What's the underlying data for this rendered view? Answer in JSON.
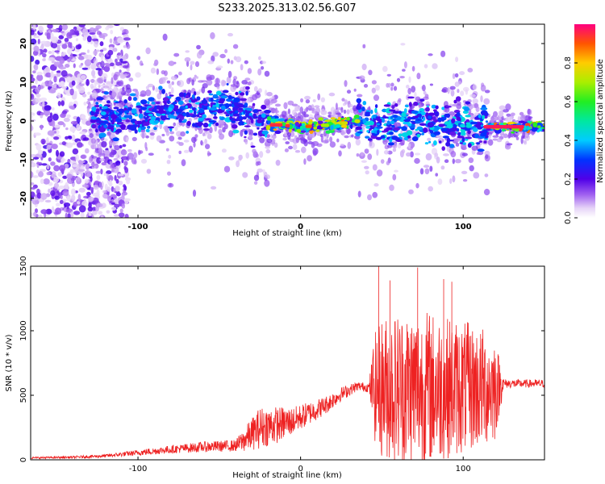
{
  "chart_data": [
    {
      "type": "heatmap",
      "title": "S233.2025.313.02.56.G07",
      "xlabel": "Height of straight line (km)",
      "ylabel": "Frequency (Hz)",
      "xlim": [
        -166,
        150
      ],
      "ylim": [
        -25,
        25
      ],
      "xticks": [
        -100,
        0,
        100
      ],
      "yticks": [
        -20,
        -10,
        0,
        10,
        20
      ],
      "colorbar": {
        "label": "Normalized spectral amplitude",
        "range": [
          0,
          1
        ],
        "ticks": [
          "0.0",
          "0.2",
          "0.4",
          "0.6",
          "0.8"
        ]
      },
      "ridge": {
        "description_x": [
          -125,
          -110,
          -90,
          -75,
          -60,
          -45,
          -35,
          -25,
          -15,
          0,
          20,
          35,
          50,
          70,
          90,
          110,
          150
        ],
        "center_freq": [
          0.5,
          1,
          2,
          3.5,
          3,
          4,
          2,
          0,
          -1,
          -1.5,
          -1,
          0,
          -1,
          0,
          -1,
          -1.5,
          -1.5
        ]
      }
    },
    {
      "type": "line",
      "xlabel": "Height of straight line (km)",
      "ylabel": "SNR (10 * v/v)",
      "xlim": [
        -166,
        150
      ],
      "ylim": [
        0,
        1500
      ],
      "xticks": [
        -100,
        0,
        100
      ],
      "yticks": [
        0,
        500,
        1000,
        1500
      ],
      "series": [
        {
          "name": "SNR",
          "color": "#ee2222",
          "envelope_x": [
            -166,
            -140,
            -120,
            -100,
            -80,
            -60,
            -40,
            -35,
            -25,
            -15,
            -5,
            5,
            15,
            25,
            35,
            42,
            45,
            50,
            60,
            70,
            80,
            90,
            100,
            110,
            120,
            125,
            135,
            150
          ],
          "envelope_mean": [
            15,
            20,
            30,
            55,
            80,
            100,
            110,
            150,
            250,
            270,
            300,
            360,
            420,
            510,
            570,
            560,
            560,
            560,
            560,
            560,
            560,
            560,
            560,
            560,
            560,
            590,
            590,
            590
          ],
          "envelope_spread": [
            8,
            10,
            15,
            25,
            35,
            45,
            50,
            100,
            180,
            160,
            120,
            100,
            80,
            60,
            40,
            40,
            400,
            550,
            600,
            620,
            600,
            550,
            520,
            480,
            420,
            40,
            35,
            35
          ]
        }
      ],
      "peaks": [
        {
          "x": 48,
          "y": 1500
        },
        {
          "x": 72,
          "y": 1490
        },
        {
          "x": 88,
          "y": 1400
        },
        {
          "x": 55,
          "y": 1390
        },
        {
          "x": 93,
          "y": 1380
        }
      ]
    }
  ]
}
